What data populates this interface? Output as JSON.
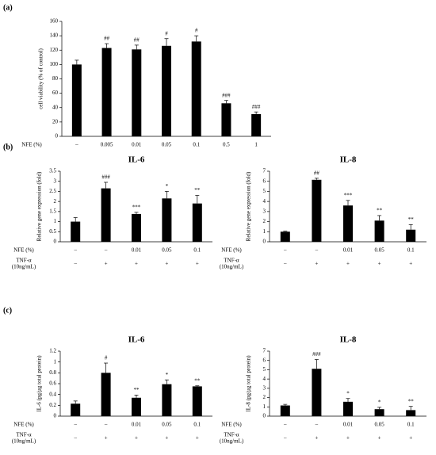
{
  "panel_labels": [
    "(a)",
    "(b)",
    "(c)"
  ],
  "chart_data": [
    {
      "type": "bar",
      "y_label": "cell viability (% of control)",
      "x_label": "NFE (%)",
      "categories": [
        "–",
        "0.005",
        "0.01",
        "0.05",
        "0.1",
        "0.5",
        "1"
      ],
      "values": [
        100,
        123,
        121,
        126,
        132,
        46,
        31
      ],
      "errors": [
        6,
        6,
        6,
        10,
        8,
        4,
        3
      ],
      "annotations": [
        null,
        "##",
        "##",
        "#",
        "#",
        "###",
        "###"
      ],
      "color": "#000000",
      "ylim": [
        0,
        160
      ],
      "yticks": [
        0,
        20,
        40,
        60,
        80,
        100,
        120,
        140,
        160
      ]
    },
    {
      "type": "bar",
      "title": "IL-6",
      "y_label": "Relative gene expression (fold)",
      "x_label": "NFE (%)",
      "x2_label": [
        "TNF-α",
        "(10ng/mL)"
      ],
      "categories": [
        "–",
        "–",
        "0.01",
        "0.05",
        "0.1"
      ],
      "categories2": [
        "–",
        "+",
        "+",
        "+",
        "+"
      ],
      "values": [
        1.0,
        2.65,
        1.38,
        2.15,
        1.9
      ],
      "errors": [
        0.2,
        0.3,
        0.08,
        0.35,
        0.4
      ],
      "annotations": [
        null,
        "###",
        "***",
        "*",
        "**"
      ],
      "color": "#000000",
      "ylim": [
        0,
        3.5
      ],
      "yticks": [
        0,
        0.5,
        1,
        1.5,
        2,
        2.5,
        3,
        3.5
      ]
    },
    {
      "type": "bar",
      "title": "IL-8",
      "y_label": "Relative gene expression (fold)",
      "x_label": "NFE (%)",
      "x2_label": [
        "TNF-α",
        "(10ng/mL)"
      ],
      "categories": [
        "–",
        "–",
        "0.01",
        "0.05",
        "0.1"
      ],
      "categories2": [
        "–",
        "+",
        "+",
        "+",
        "+"
      ],
      "values": [
        1.0,
        6.15,
        3.6,
        2.1,
        1.2
      ],
      "errors": [
        0.05,
        0.15,
        0.5,
        0.5,
        0.5
      ],
      "annotations": [
        null,
        "##",
        "***",
        "**",
        "**"
      ],
      "color": "#000000",
      "ylim": [
        0,
        7
      ],
      "yticks": [
        0,
        1,
        2,
        3,
        4,
        5,
        6,
        7
      ]
    },
    {
      "type": "bar",
      "title": "IL-6",
      "y_label": "IL-6 (pg/µg total protein)",
      "x_label": "NFE (%)",
      "x2_label": [
        "TNF-α",
        "(10ng/mL)"
      ],
      "categories": [
        "–",
        "–",
        "0.01",
        "0.05",
        "0.1"
      ],
      "categories2": [
        "–",
        "+",
        "+",
        "+",
        "+"
      ],
      "values": [
        0.23,
        0.8,
        0.34,
        0.59,
        0.55
      ],
      "errors": [
        0.05,
        0.18,
        0.05,
        0.08,
        0.01
      ],
      "annotations": [
        null,
        "#",
        "**",
        "*",
        "**"
      ],
      "color": "#000000",
      "ylim": [
        0,
        1.2
      ],
      "yticks": [
        0,
        0.2,
        0.4,
        0.6,
        0.8,
        1,
        1.2
      ]
    },
    {
      "type": "bar",
      "title": "IL-8",
      "y_label": "IL-8 (pg/µg total protein)",
      "x_label": "NFE (%)",
      "x2_label": [
        "TNF-α",
        "(10ng/mL)"
      ],
      "categories": [
        "–",
        "–",
        "0.01",
        "0.05",
        "0.1"
      ],
      "categories2": [
        "–",
        "+",
        "+",
        "+",
        "+"
      ],
      "values": [
        1.15,
        5.1,
        1.55,
        0.75,
        0.65
      ],
      "errors": [
        0.12,
        1.0,
        0.35,
        0.2,
        0.4
      ],
      "annotations": [
        null,
        "###",
        "*",
        "*",
        "**"
      ],
      "color": "#000000",
      "ylim": [
        0,
        7
      ],
      "yticks": [
        0,
        1,
        2,
        3,
        4,
        5,
        6,
        7
      ]
    }
  ]
}
